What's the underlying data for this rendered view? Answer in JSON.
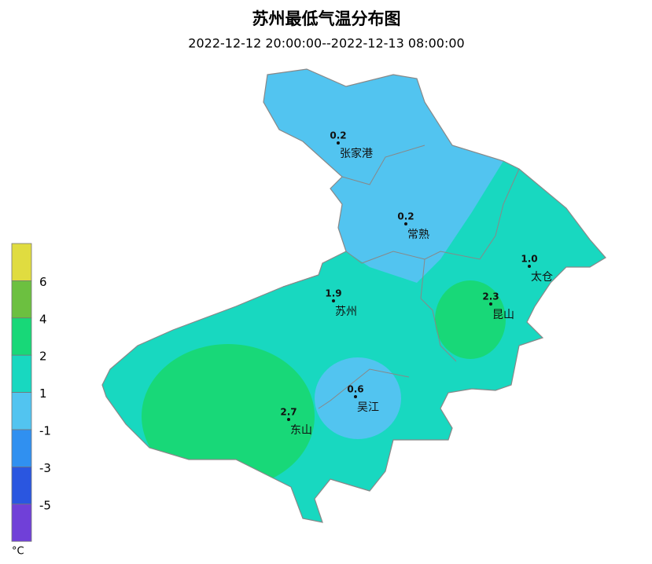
{
  "title": "苏州最低气温分布图",
  "subtitle": "2022-12-12 20:00:00--2022-12-13 08:00:00",
  "stations": [
    {
      "name": "张家港",
      "value": "0.2"
    },
    {
      "name": "常熟",
      "value": "0.2"
    },
    {
      "name": "太仓",
      "value": "1.0"
    },
    {
      "name": "苏州",
      "value": "1.9"
    },
    {
      "name": "昆山",
      "value": "2.3"
    },
    {
      "name": "吴江",
      "value": "0.6"
    },
    {
      "name": "东山",
      "value": "2.7"
    }
  ],
  "legend": {
    "colors": [
      "#e0dc40",
      "#6cc040",
      "#18d878",
      "#18d8c0",
      "#52c4f0",
      "#3090f0",
      "#2a56e0",
      "#7040d8"
    ],
    "ticks": [
      6,
      4,
      2,
      1,
      -1,
      -3,
      -5
    ],
    "unit": "°C"
  }
}
